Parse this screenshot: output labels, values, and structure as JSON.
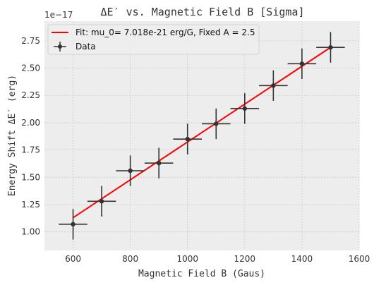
{
  "chart_data": {
    "type": "scatter",
    "title": "ΔE′  vs. Magnetic Field B [Sigma]",
    "xlabel": "Magnetic Field B (Gaus)",
    "ylabel": "Energy Shift ΔE′ (erg)",
    "y_offset_label": "1e−17",
    "xlim": [
      500,
      1600
    ],
    "ylim": [
      0.83,
      2.93
    ],
    "y_scale_exponent": -17,
    "x_ticks": [
      600,
      800,
      1000,
      1200,
      1400,
      1600
    ],
    "y_ticks": [
      1.0,
      1.25,
      1.5,
      1.75,
      2.0,
      2.25,
      2.5,
      2.75
    ],
    "x_tick_labels": [
      "600",
      "800",
      "1000",
      "1200",
      "1400",
      "1600"
    ],
    "y_tick_labels": [
      "1.00",
      "1.25",
      "1.50",
      "1.75",
      "2.00",
      "2.25",
      "2.50",
      "2.75"
    ],
    "grid": true,
    "legend_placement": "top-left",
    "series": [
      {
        "name": "Data",
        "kind": "errorbar",
        "color": "#333333",
        "x": [
          600,
          700,
          800,
          900,
          1000,
          1100,
          1200,
          1300,
          1400,
          1500
        ],
        "y": [
          1.07,
          1.28,
          1.56,
          1.63,
          1.85,
          1.99,
          2.13,
          2.34,
          2.54,
          2.69
        ],
        "xerr": [
          50,
          50,
          50,
          50,
          50,
          50,
          50,
          50,
          50,
          50
        ],
        "yerr": [
          0.14,
          0.14,
          0.14,
          0.14,
          0.14,
          0.14,
          0.14,
          0.14,
          0.14,
          0.14
        ]
      },
      {
        "name": "Fit: mu_0= 7.018e-21 erg/G, Fixed A = 2.5",
        "kind": "line",
        "color": "#ff0000",
        "x": [
          600,
          1500
        ],
        "y": [
          1.13,
          2.69
        ]
      }
    ],
    "legend": [
      {
        "label": "Fit: mu_0= 7.018e-21 erg/G, Fixed A = 2.5",
        "kind": "line",
        "color": "#ff0000"
      },
      {
        "label": "Data",
        "kind": "errorbar",
        "color": "#333333"
      }
    ],
    "colors": {
      "axes_bg": "#ededed",
      "grid": "#c8c8c8",
      "text": "#333333"
    }
  }
}
